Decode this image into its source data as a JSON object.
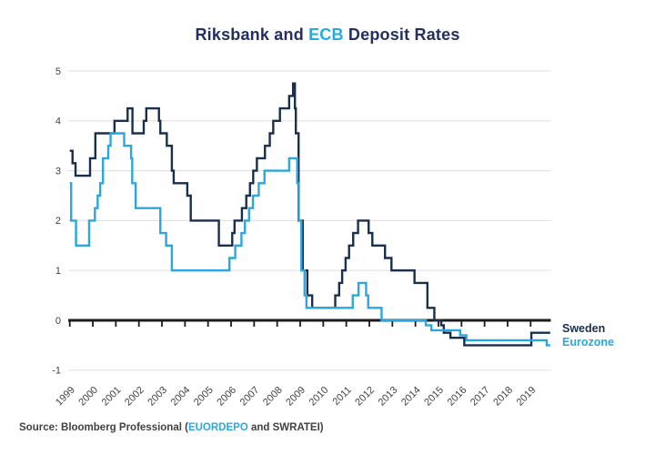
{
  "title": {
    "part1": "Riksbank and ",
    "part2": "ECB",
    "part3": " Deposit Rates"
  },
  "legend": {
    "sweden": "Sweden",
    "eurozone": "Eurozone"
  },
  "source": {
    "part1": "Source: Bloomberg Professional (",
    "ticker1": "EUORDEPO",
    "part2": " and SWRATEI)"
  },
  "colors": {
    "title_navy": "#232f60",
    "sweden_line": "#182f4e",
    "eurozone_line": "#2aa7e0",
    "axis": "#1b1b1b",
    "gridline": "#e3e3e3",
    "tick_label": "#414141"
  },
  "chart_data": {
    "type": "line",
    "subtype": "step",
    "title": "Riksbank and ECB Deposit Rates",
    "xlabel": "",
    "ylabel": "",
    "xlim": [
      1999,
      2019.85
    ],
    "ylim": [
      -1,
      5
    ],
    "grid": true,
    "legend_position": "right-of-line-ends",
    "x_ticks": [
      1999,
      2000,
      2001,
      2002,
      2003,
      2004,
      2005,
      2006,
      2007,
      2008,
      2009,
      2010,
      2011,
      2012,
      2013,
      2014,
      2015,
      2016,
      2017,
      2018,
      2019
    ],
    "y_ticks": [
      5,
      4,
      3,
      2,
      1,
      0,
      -1
    ],
    "series": [
      {
        "name": "Sweden",
        "color": "#182f4e",
        "end": 2019.85,
        "steps": [
          [
            1999.0,
            3.4
          ],
          [
            1999.12,
            3.15
          ],
          [
            1999.25,
            2.9
          ],
          [
            1999.88,
            3.25
          ],
          [
            2000.11,
            3.75
          ],
          [
            2000.94,
            4.0
          ],
          [
            2001.51,
            4.25
          ],
          [
            2001.72,
            3.75
          ],
          [
            2002.21,
            4.0
          ],
          [
            2002.32,
            4.25
          ],
          [
            2002.87,
            4.0
          ],
          [
            2002.93,
            3.75
          ],
          [
            2003.21,
            3.5
          ],
          [
            2003.43,
            3.0
          ],
          [
            2003.51,
            2.75
          ],
          [
            2004.1,
            2.5
          ],
          [
            2004.25,
            2.0
          ],
          [
            2005.47,
            1.5
          ],
          [
            2006.05,
            1.75
          ],
          [
            2006.15,
            2.0
          ],
          [
            2006.47,
            2.25
          ],
          [
            2006.66,
            2.5
          ],
          [
            2006.82,
            2.75
          ],
          [
            2006.96,
            3.0
          ],
          [
            2007.12,
            3.25
          ],
          [
            2007.47,
            3.5
          ],
          [
            2007.68,
            3.75
          ],
          [
            2007.83,
            4.0
          ],
          [
            2008.12,
            4.25
          ],
          [
            2008.52,
            4.5
          ],
          [
            2008.69,
            4.75
          ],
          [
            2008.77,
            4.25
          ],
          [
            2008.81,
            3.75
          ],
          [
            2008.93,
            2.0
          ],
          [
            2009.11,
            1.0
          ],
          [
            2009.31,
            0.5
          ],
          [
            2009.52,
            0.25
          ],
          [
            2010.52,
            0.5
          ],
          [
            2010.69,
            0.75
          ],
          [
            2010.82,
            1.0
          ],
          [
            2010.97,
            1.25
          ],
          [
            2011.12,
            1.5
          ],
          [
            2011.3,
            1.75
          ],
          [
            2011.51,
            2.0
          ],
          [
            2011.97,
            1.75
          ],
          [
            2012.13,
            1.5
          ],
          [
            2012.68,
            1.25
          ],
          [
            2012.96,
            1.0
          ],
          [
            2013.96,
            0.75
          ],
          [
            2014.52,
            0.25
          ],
          [
            2014.82,
            0.0
          ],
          [
            2015.12,
            -0.1
          ],
          [
            2015.23,
            -0.25
          ],
          [
            2015.52,
            -0.35
          ],
          [
            2016.12,
            -0.5
          ],
          [
            2019.03,
            -0.25
          ]
        ]
      },
      {
        "name": "Eurozone",
        "color": "#2aa7e0",
        "end": 2019.85,
        "steps": [
          [
            1999.0,
            2.75
          ],
          [
            1999.06,
            2.0
          ],
          [
            1999.27,
            1.5
          ],
          [
            1999.84,
            2.0
          ],
          [
            2000.09,
            2.25
          ],
          [
            2000.21,
            2.5
          ],
          [
            2000.32,
            2.75
          ],
          [
            2000.44,
            3.25
          ],
          [
            2000.67,
            3.5
          ],
          [
            2000.77,
            3.75
          ],
          [
            2001.36,
            3.5
          ],
          [
            2001.66,
            3.25
          ],
          [
            2001.71,
            2.75
          ],
          [
            2001.86,
            2.25
          ],
          [
            2002.93,
            1.75
          ],
          [
            2003.18,
            1.5
          ],
          [
            2003.43,
            1.0
          ],
          [
            2005.93,
            1.25
          ],
          [
            2006.18,
            1.5
          ],
          [
            2006.45,
            1.75
          ],
          [
            2006.6,
            2.0
          ],
          [
            2006.78,
            2.25
          ],
          [
            2006.95,
            2.5
          ],
          [
            2007.2,
            2.75
          ],
          [
            2007.45,
            3.0
          ],
          [
            2008.52,
            3.25
          ],
          [
            2008.87,
            2.75
          ],
          [
            2008.94,
            2.0
          ],
          [
            2009.05,
            1.0
          ],
          [
            2009.19,
            0.5
          ],
          [
            2009.27,
            0.25
          ],
          [
            2011.28,
            0.5
          ],
          [
            2011.53,
            0.75
          ],
          [
            2011.86,
            0.5
          ],
          [
            2011.95,
            0.25
          ],
          [
            2012.53,
            0.0
          ],
          [
            2014.45,
            -0.1
          ],
          [
            2014.69,
            -0.2
          ],
          [
            2015.94,
            -0.3
          ],
          [
            2016.21,
            -0.4
          ],
          [
            2019.7,
            -0.5
          ]
        ]
      }
    ]
  }
}
